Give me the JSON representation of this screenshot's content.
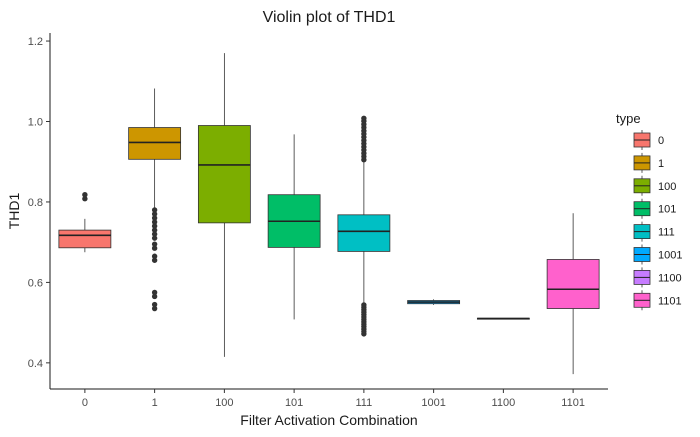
{
  "chart_data": {
    "type": "boxplot",
    "title": "Violin plot of THD1",
    "xlabel": "Filter Activation Combination",
    "ylabel": "THD1",
    "ylim": [
      0.335,
      1.22
    ],
    "yticks": [
      0.4,
      0.6,
      0.8,
      1.0,
      1.2
    ],
    "ytick_labels": [
      "0.4",
      "0.6",
      "0.8",
      "1.0",
      "1.2"
    ],
    "grid": false,
    "legend": {
      "title": "type",
      "placement": "right",
      "entries": [
        "0",
        "1",
        "100",
        "101",
        "111",
        "1001",
        "1100",
        "1101"
      ]
    },
    "categories": [
      "0",
      "1",
      "100",
      "101",
      "111",
      "1001",
      "1100",
      "1101"
    ],
    "series": [
      {
        "name": "0",
        "color": "#F8766D",
        "whisker_low": 0.675,
        "q1": 0.686,
        "median": 0.717,
        "q3": 0.73,
        "whisker_high": 0.758,
        "outliers": [
          0.808,
          0.818
        ]
      },
      {
        "name": "1",
        "color": "#CD9600",
        "whisker_low": 0.783,
        "q1": 0.906,
        "median": 0.948,
        "q3": 0.985,
        "whisker_high": 1.082,
        "outliers": [
          0.535,
          0.545,
          0.565,
          0.575,
          0.655,
          0.665,
          0.685,
          0.695,
          0.71,
          0.72,
          0.73,
          0.74,
          0.75,
          0.76,
          0.77,
          0.78
        ]
      },
      {
        "name": "100",
        "color": "#7CAE00",
        "whisker_low": 0.415,
        "q1": 0.748,
        "median": 0.892,
        "q3": 0.99,
        "whisker_high": 1.17,
        "outliers": []
      },
      {
        "name": "101",
        "color": "#00BE67",
        "whisker_low": 0.508,
        "q1": 0.687,
        "median": 0.752,
        "q3": 0.818,
        "whisker_high": 0.968,
        "outliers": []
      },
      {
        "name": "111",
        "color": "#00BFC4",
        "whisker_low": 0.548,
        "q1": 0.677,
        "median": 0.727,
        "q3": 0.768,
        "whisker_high": 0.9,
        "outliers": [
          0.472,
          0.478,
          0.484,
          0.49,
          0.496,
          0.502,
          0.508,
          0.514,
          0.52,
          0.526,
          0.532,
          0.538,
          0.544,
          0.905,
          0.913,
          0.921,
          0.929,
          0.937,
          0.945,
          0.953,
          0.961,
          0.969,
          0.977,
          0.985,
          0.993,
          1.001,
          1.008
        ]
      },
      {
        "name": "1001",
        "color": "#00A9FF",
        "whisker_low": 0.544,
        "q1": 0.547,
        "median": 0.551,
        "q3": 0.555,
        "whisker_high": 0.558,
        "outliers": []
      },
      {
        "name": "1100",
        "color": "#C77CFF",
        "whisker_low": 0.509,
        "q1": 0.509,
        "median": 0.51,
        "q3": 0.511,
        "whisker_high": 0.511,
        "outliers": []
      },
      {
        "name": "1101",
        "color": "#FF61CC",
        "whisker_low": 0.372,
        "q1": 0.535,
        "median": 0.583,
        "q3": 0.657,
        "whisker_high": 0.772,
        "outliers": []
      }
    ]
  }
}
